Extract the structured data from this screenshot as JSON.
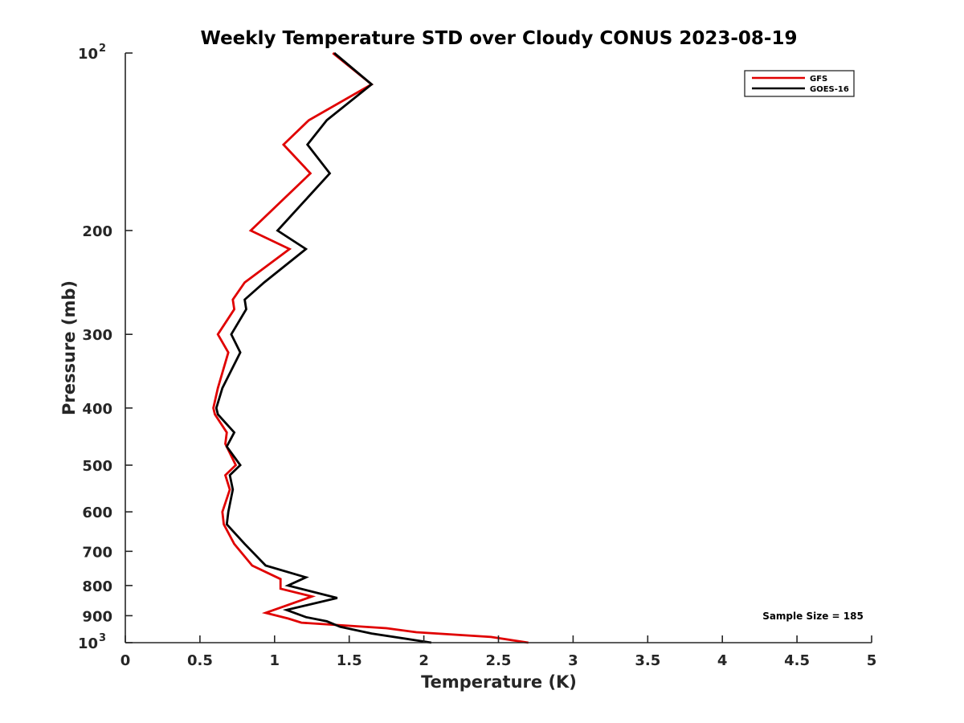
{
  "chart_data": {
    "type": "line",
    "title": "Weekly Temperature STD over Cloudy CONUS 2023-08-19",
    "xlabel": "Temperature (K)",
    "ylabel": "Pressure (mb)",
    "xlim": [
      0,
      5
    ],
    "ylim": [
      100,
      1000
    ],
    "y_scale": "log",
    "y_reversed": true,
    "grid": false,
    "legend_position": "top-right",
    "x_ticks": [
      {
        "value": 0,
        "label": "0"
      },
      {
        "value": 0.5,
        "label": "0.5"
      },
      {
        "value": 1,
        "label": "1"
      },
      {
        "value": 1.5,
        "label": "1.5"
      },
      {
        "value": 2,
        "label": "2"
      },
      {
        "value": 2.5,
        "label": "2.5"
      },
      {
        "value": 3,
        "label": "3"
      },
      {
        "value": 3.5,
        "label": "3.5"
      },
      {
        "value": 4,
        "label": "4"
      },
      {
        "value": 4.5,
        "label": "4.5"
      },
      {
        "value": 5,
        "label": "5"
      }
    ],
    "y_ticks": [
      {
        "value": 100,
        "label": "10",
        "sup": "2"
      },
      {
        "value": 200,
        "label": "200",
        "sup": ""
      },
      {
        "value": 300,
        "label": "300",
        "sup": ""
      },
      {
        "value": 400,
        "label": "400",
        "sup": ""
      },
      {
        "value": 500,
        "label": "500",
        "sup": ""
      },
      {
        "value": 600,
        "label": "600",
        "sup": ""
      },
      {
        "value": 700,
        "label": "700",
        "sup": ""
      },
      {
        "value": 800,
        "label": "800",
        "sup": ""
      },
      {
        "value": 900,
        "label": "900",
        "sup": ""
      },
      {
        "value": 1000,
        "label": "10",
        "sup": "3"
      }
    ],
    "series": [
      {
        "name": "GFS",
        "color": "#e00000",
        "points": [
          [
            1.39,
            100
          ],
          [
            1.65,
            113
          ],
          [
            1.23,
            130
          ],
          [
            1.06,
            143
          ],
          [
            1.24,
            160
          ],
          [
            0.84,
            200
          ],
          [
            1.1,
            215
          ],
          [
            0.8,
            245
          ],
          [
            0.72,
            262
          ],
          [
            0.73,
            272
          ],
          [
            0.62,
            300
          ],
          [
            0.69,
            322
          ],
          [
            0.62,
            370
          ],
          [
            0.59,
            400
          ],
          [
            0.6,
            410
          ],
          [
            0.68,
            440
          ],
          [
            0.67,
            460
          ],
          [
            0.74,
            500
          ],
          [
            0.67,
            520
          ],
          [
            0.7,
            550
          ],
          [
            0.65,
            600
          ],
          [
            0.66,
            630
          ],
          [
            0.73,
            680
          ],
          [
            0.85,
            740
          ],
          [
            1.04,
            780
          ],
          [
            1.04,
            810
          ],
          [
            1.25,
            835
          ],
          [
            0.94,
            890
          ],
          [
            1.09,
            910
          ],
          [
            1.18,
            925
          ],
          [
            1.75,
            945
          ],
          [
            1.95,
            960
          ],
          [
            2.45,
            978
          ],
          [
            2.7,
            1000
          ]
        ]
      },
      {
        "name": "GOES-16",
        "color": "#000000",
        "points": [
          [
            1.4,
            100
          ],
          [
            1.65,
            113
          ],
          [
            1.35,
            130
          ],
          [
            1.22,
            143
          ],
          [
            1.37,
            160
          ],
          [
            1.02,
            200
          ],
          [
            1.21,
            215
          ],
          [
            0.93,
            245
          ],
          [
            0.8,
            262
          ],
          [
            0.81,
            272
          ],
          [
            0.71,
            300
          ],
          [
            0.77,
            322
          ],
          [
            0.65,
            370
          ],
          [
            0.61,
            400
          ],
          [
            0.62,
            410
          ],
          [
            0.73,
            440
          ],
          [
            0.68,
            465
          ],
          [
            0.77,
            500
          ],
          [
            0.7,
            520
          ],
          [
            0.72,
            550
          ],
          [
            0.69,
            600
          ],
          [
            0.68,
            630
          ],
          [
            0.8,
            680
          ],
          [
            0.94,
            740
          ],
          [
            1.21,
            775
          ],
          [
            1.09,
            800
          ],
          [
            1.42,
            840
          ],
          [
            1.08,
            880
          ],
          [
            1.21,
            905
          ],
          [
            1.35,
            920
          ],
          [
            1.44,
            940
          ],
          [
            1.65,
            965
          ],
          [
            2.05,
            1000
          ]
        ]
      }
    ],
    "annotations": [
      {
        "text": "Sample Size = 185",
        "position": "bottom-right"
      }
    ]
  }
}
